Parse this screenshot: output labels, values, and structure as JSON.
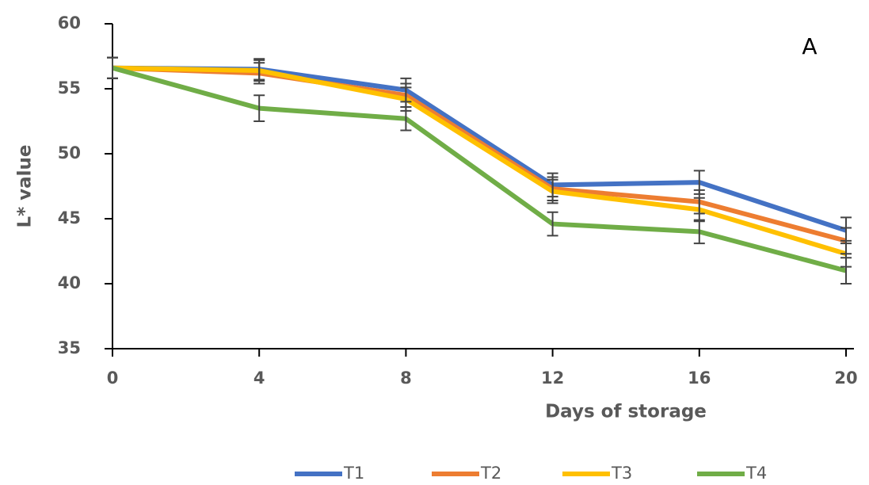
{
  "chart_data": {
    "type": "line",
    "annotation": "A",
    "x_label": "Days of storage",
    "y_label": "L* value",
    "x": [
      0,
      4,
      8,
      12,
      16,
      20
    ],
    "xlim": [
      0,
      20
    ],
    "xticks": [
      0,
      4,
      8,
      12,
      16,
      20
    ],
    "ylim": [
      35,
      60
    ],
    "yticks": [
      35,
      40,
      45,
      50,
      55,
      60
    ],
    "series": [
      {
        "name": "T1",
        "color": "#4472c4",
        "values": [
          56.6,
          56.5,
          54.9,
          47.6,
          47.8,
          44.1
        ],
        "errors": [
          0.8,
          0.8,
          0.9,
          0.9,
          0.9,
          1.0
        ]
      },
      {
        "name": "T2",
        "color": "#ed7d31",
        "values": [
          56.6,
          56.2,
          54.5,
          47.3,
          46.3,
          43.3
        ],
        "errors": [
          0.8,
          0.8,
          0.9,
          0.9,
          0.9,
          1.0
        ]
      },
      {
        "name": "T3",
        "color": "#ffc000",
        "values": [
          56.6,
          56.4,
          54.2,
          47.1,
          45.7,
          42.3
        ],
        "errors": [
          0.8,
          0.8,
          0.9,
          0.9,
          0.9,
          1.0
        ]
      },
      {
        "name": "T4",
        "color": "#70ad47",
        "values": [
          56.6,
          53.5,
          52.7,
          44.6,
          44.0,
          41.0
        ],
        "errors": [
          0.8,
          1.0,
          0.9,
          0.9,
          0.9,
          1.0
        ]
      }
    ]
  }
}
